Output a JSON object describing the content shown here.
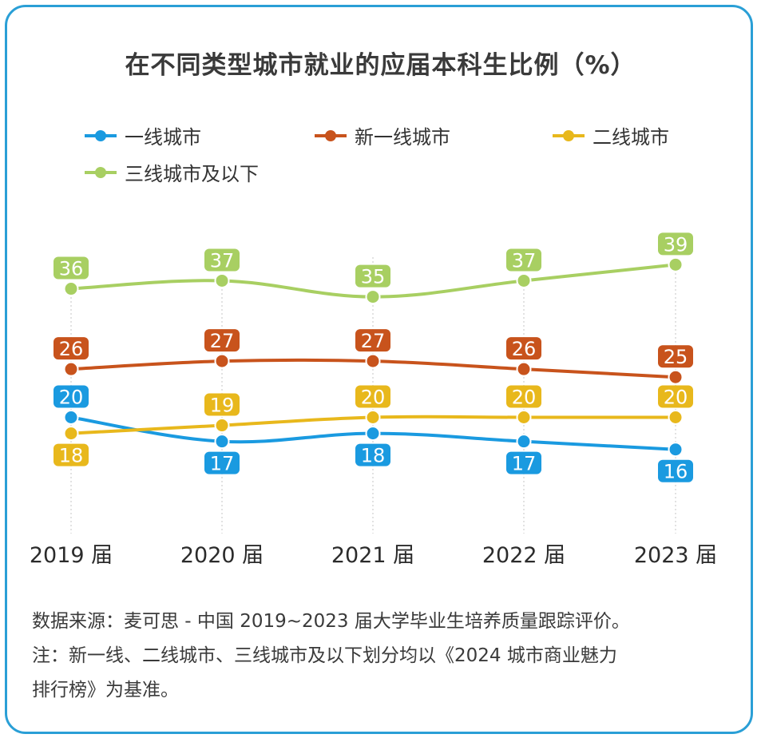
{
  "title": "在不同类型城市就业的应届本科生比例（%）",
  "chart_data": {
    "type": "line",
    "categories": [
      "2019 届",
      "2020 届",
      "2021 届",
      "2022 届",
      "2023 届"
    ],
    "series": [
      {
        "name": "一线城市",
        "color": "#1a9ae0",
        "values": [
          20,
          17,
          18,
          17,
          16
        ]
      },
      {
        "name": "新一线城市",
        "color": "#c8531c",
        "values": [
          26,
          27,
          27,
          26,
          25
        ]
      },
      {
        "name": "二线城市",
        "color": "#e8b81c",
        "values": [
          18,
          19,
          20,
          20,
          20
        ]
      },
      {
        "name": "三线城市及以下",
        "color": "#a8cf62",
        "values": [
          36,
          37,
          35,
          37,
          39
        ]
      }
    ],
    "grid": false,
    "legend_position": "top"
  },
  "footnotes": {
    "source": "数据来源：麦可思 - 中国 2019~2023 届大学毕业生培养质量跟踪评价。",
    "note_line1": "注：新一线、二线城市、三线城市及以下划分均以《2024 城市商业魅力",
    "note_line2": "排行榜》为基准。"
  }
}
